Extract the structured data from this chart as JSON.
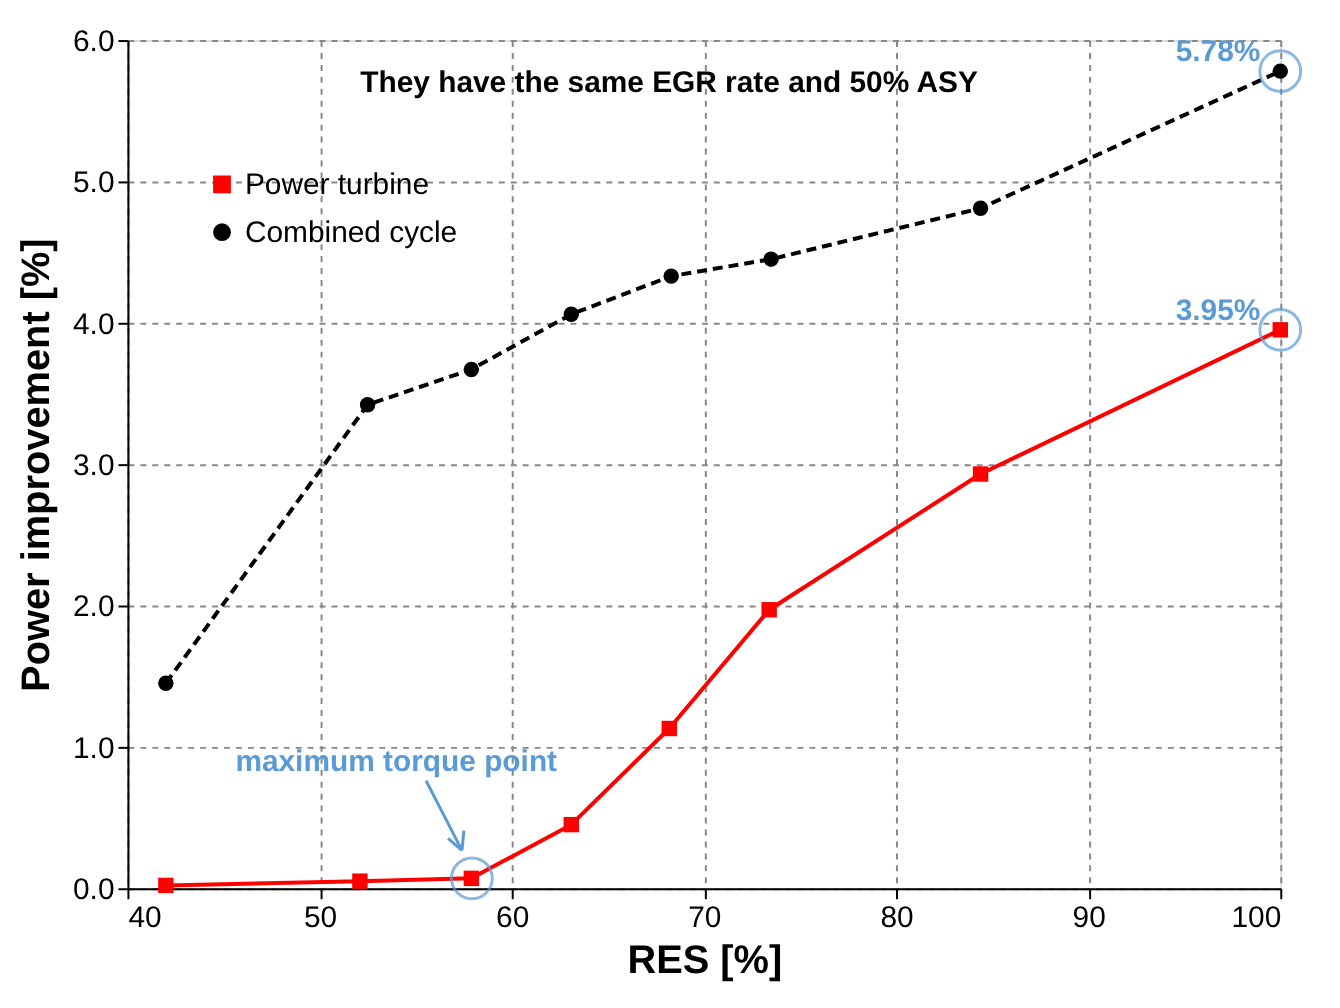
{
  "chart_data": {
    "type": "line",
    "title": "They have the same EGR rate and 50% ASY",
    "xlabel": "RES [%]",
    "ylabel": "Power improvement [%]",
    "xlim": [
      40,
      100
    ],
    "xticks": [
      40,
      50,
      60,
      70,
      80,
      90,
      100
    ],
    "ylim": [
      0,
      6
    ],
    "yticks": [
      {
        "value": 0,
        "label": "0.0"
      },
      {
        "value": 1,
        "label": "1.0"
      },
      {
        "value": 2,
        "label": "2.0"
      },
      {
        "value": 3,
        "label": "3.0"
      },
      {
        "value": 4,
        "label": "4.0"
      },
      {
        "value": 5,
        "label": "5.0"
      },
      {
        "value": 6,
        "label": "6.0"
      }
    ],
    "grid": true,
    "legend": "top left",
    "series": [
      {
        "name": "Power turbine",
        "color": "#ff0000",
        "marker": "square",
        "line_style": "solid",
        "x": [
          42,
          52.1,
          57.9,
          63.1,
          68.2,
          73.4,
          84.4,
          100
        ],
        "values": [
          0.02,
          0.05,
          0.07,
          0.45,
          1.13,
          1.97,
          2.93,
          3.95
        ],
        "value_labels": [
          null,
          null,
          null,
          null,
          null,
          null,
          null,
          "3.95%"
        ]
      },
      {
        "name": "Combined cycle",
        "color": "#000000",
        "marker": "circle",
        "line_style": "dashed",
        "x": [
          42,
          52.5,
          57.9,
          63.1,
          68.3,
          73.5,
          84.4,
          100
        ],
        "values": [
          1.45,
          3.42,
          3.67,
          4.06,
          4.33,
          4.45,
          4.81,
          5.78
        ],
        "value_labels": [
          null,
          null,
          null,
          null,
          null,
          null,
          null,
          "5.78%"
        ]
      }
    ],
    "annotations": [
      "maximum torque point"
    ]
  }
}
